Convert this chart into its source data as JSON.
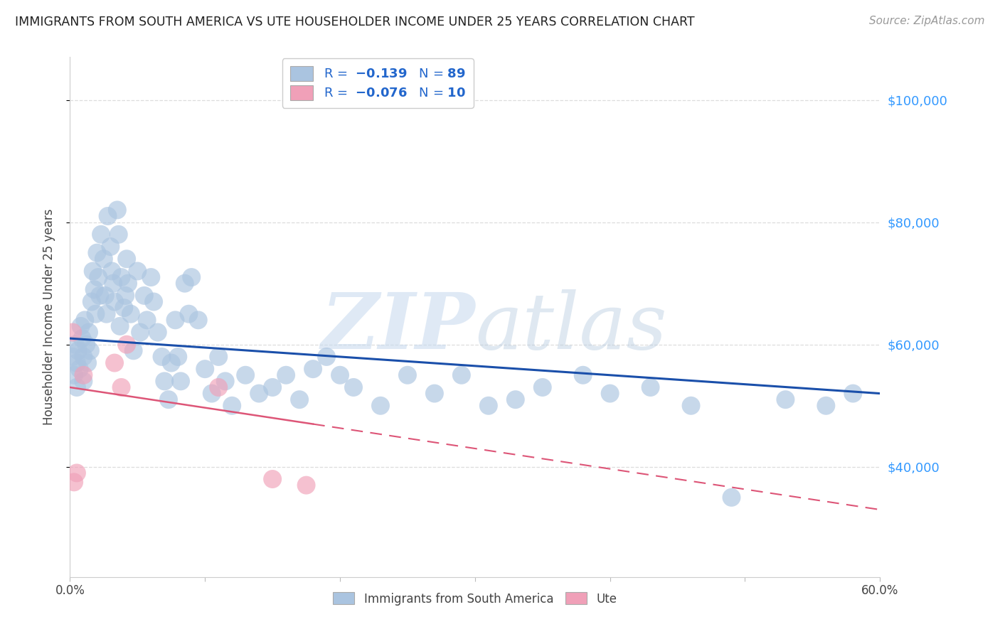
{
  "title": "IMMIGRANTS FROM SOUTH AMERICA VS UTE HOUSEHOLDER INCOME UNDER 25 YEARS CORRELATION CHART",
  "source": "Source: ZipAtlas.com",
  "ylabel": "Householder Income Under 25 years",
  "xmin": 0.0,
  "xmax": 0.6,
  "ymin": 22000,
  "ymax": 107000,
  "yticks": [
    40000,
    60000,
    80000,
    100000
  ],
  "ytick_labels": [
    "$40,000",
    "$60,000",
    "$80,000",
    "$100,000"
  ],
  "xticks": [
    0.0,
    0.1,
    0.2,
    0.3,
    0.4,
    0.5,
    0.6
  ],
  "xtick_labels": [
    "0.0%",
    "",
    "",
    "",
    "",
    "",
    "60.0%"
  ],
  "blue_R": -0.139,
  "blue_N": 89,
  "pink_R": -0.076,
  "pink_N": 10,
  "blue_color": "#aac4e0",
  "blue_line_color": "#1a4faa",
  "pink_color": "#f0a0b8",
  "pink_line_color": "#dd5577",
  "blue_scatter_x": [
    0.002,
    0.003,
    0.004,
    0.005,
    0.005,
    0.006,
    0.007,
    0.008,
    0.009,
    0.01,
    0.01,
    0.011,
    0.012,
    0.013,
    0.014,
    0.015,
    0.016,
    0.017,
    0.018,
    0.019,
    0.02,
    0.021,
    0.022,
    0.023,
    0.025,
    0.026,
    0.027,
    0.028,
    0.03,
    0.031,
    0.032,
    0.033,
    0.035,
    0.036,
    0.037,
    0.038,
    0.04,
    0.041,
    0.042,
    0.043,
    0.045,
    0.047,
    0.05,
    0.052,
    0.055,
    0.057,
    0.06,
    0.062,
    0.065,
    0.068,
    0.07,
    0.073,
    0.075,
    0.078,
    0.08,
    0.082,
    0.085,
    0.088,
    0.09,
    0.095,
    0.1,
    0.105,
    0.11,
    0.115,
    0.12,
    0.13,
    0.14,
    0.15,
    0.16,
    0.17,
    0.18,
    0.19,
    0.2,
    0.21,
    0.23,
    0.25,
    0.27,
    0.29,
    0.31,
    0.33,
    0.35,
    0.38,
    0.4,
    0.43,
    0.46,
    0.49,
    0.53,
    0.56,
    0.58
  ],
  "blue_scatter_y": [
    58000,
    55000,
    60000,
    57000,
    53000,
    59000,
    56000,
    63000,
    61000,
    58000,
    54000,
    64000,
    60000,
    57000,
    62000,
    59000,
    67000,
    72000,
    69000,
    65000,
    75000,
    71000,
    68000,
    78000,
    74000,
    68000,
    65000,
    81000,
    76000,
    72000,
    70000,
    67000,
    82000,
    78000,
    63000,
    71000,
    66000,
    68000,
    74000,
    70000,
    65000,
    59000,
    72000,
    62000,
    68000,
    64000,
    71000,
    67000,
    62000,
    58000,
    54000,
    51000,
    57000,
    64000,
    58000,
    54000,
    70000,
    65000,
    71000,
    64000,
    56000,
    52000,
    58000,
    54000,
    50000,
    55000,
    52000,
    53000,
    55000,
    51000,
    56000,
    58000,
    55000,
    53000,
    50000,
    55000,
    52000,
    55000,
    50000,
    51000,
    53000,
    55000,
    52000,
    53000,
    50000,
    35000,
    51000,
    50000,
    52000
  ],
  "pink_scatter_x": [
    0.002,
    0.003,
    0.005,
    0.01,
    0.033,
    0.038,
    0.042,
    0.11,
    0.15,
    0.175
  ],
  "pink_scatter_y": [
    62000,
    37500,
    39000,
    55000,
    57000,
    53000,
    60000,
    53000,
    38000,
    37000
  ],
  "watermark_zip": "ZIP",
  "watermark_atlas": "atlas",
  "background_color": "#ffffff",
  "grid_color": "#dddddd"
}
